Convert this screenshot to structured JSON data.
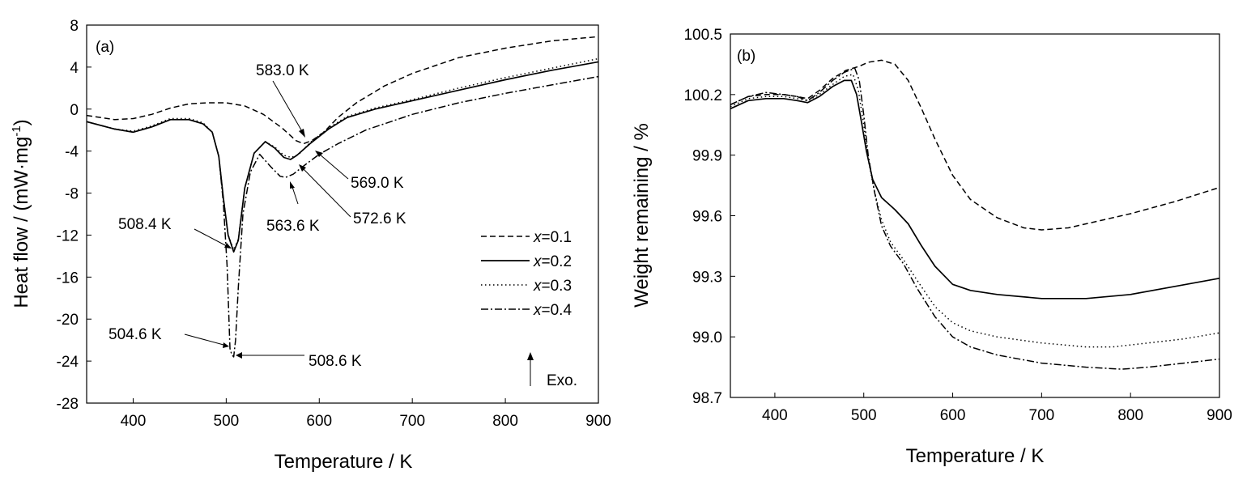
{
  "chart_data": [
    {
      "type": "line",
      "panel_label": "(a)",
      "xlabel": "Temperature / K",
      "ylabel_main": "Heat flow / (mW·mg",
      "ylabel_sup": "-1",
      "ylabel_close": ")",
      "xlim": [
        350,
        900
      ],
      "ylim": [
        -28,
        8
      ],
      "xticks": [
        "400",
        "500",
        "600",
        "700",
        "800",
        "900"
      ],
      "xtick_values": [
        400,
        500,
        600,
        700,
        800,
        900
      ],
      "yticks": [
        "8",
        "4",
        "0",
        "-4",
        "-8",
        "-12",
        "-16",
        "-20",
        "-24",
        "-28"
      ],
      "ytick_values": [
        8,
        4,
        0,
        -4,
        -8,
        -12,
        -16,
        -20,
        -24,
        -28
      ],
      "legend_position": "center-right",
      "grid": false,
      "series": [
        {
          "name": "x=0.1",
          "var": "x",
          "val": "=0.1",
          "dash": "7,4",
          "points": [
            [
              350,
              -0.6
            ],
            [
              380,
              -1.0
            ],
            [
              400,
              -0.9
            ],
            [
              420,
              -0.5
            ],
            [
              440,
              0.1
            ],
            [
              460,
              0.5
            ],
            [
              480,
              0.6
            ],
            [
              500,
              0.6
            ],
            [
              520,
              0.3
            ],
            [
              540,
              -0.5
            ],
            [
              560,
              -1.8
            ],
            [
              575,
              -3.0
            ],
            [
              583,
              -3.3
            ],
            [
              592,
              -3.0
            ],
            [
              605,
              -2.2
            ],
            [
              620,
              -0.8
            ],
            [
              640,
              0.6
            ],
            [
              670,
              2.2
            ],
            [
              700,
              3.4
            ],
            [
              750,
              4.9
            ],
            [
              800,
              5.8
            ],
            [
              850,
              6.5
            ],
            [
              900,
              6.9
            ]
          ]
        },
        {
          "name": "x=0.2",
          "var": "x",
          "val": "=0.2",
          "dash": "",
          "points": [
            [
              350,
              -1.2
            ],
            [
              380,
              -1.9
            ],
            [
              400,
              -2.2
            ],
            [
              420,
              -1.7
            ],
            [
              440,
              -1.0
            ],
            [
              460,
              -1.0
            ],
            [
              475,
              -1.4
            ],
            [
              485,
              -2.2
            ],
            [
              492,
              -4.5
            ],
            [
              497,
              -8.5
            ],
            [
              502,
              -12.0
            ],
            [
              508,
              -13.6
            ],
            [
              513,
              -12.5
            ],
            [
              520,
              -7.5
            ],
            [
              530,
              -4.2
            ],
            [
              542,
              -3.1
            ],
            [
              552,
              -3.7
            ],
            [
              562,
              -4.6
            ],
            [
              569,
              -4.8
            ],
            [
              576,
              -4.4
            ],
            [
              590,
              -3.3
            ],
            [
              610,
              -1.9
            ],
            [
              630,
              -0.8
            ],
            [
              660,
              0
            ],
            [
              700,
              0.8
            ],
            [
              750,
              1.8
            ],
            [
              800,
              2.8
            ],
            [
              850,
              3.7
            ],
            [
              900,
              4.5
            ]
          ]
        },
        {
          "name": "x=0.3",
          "var": "x",
          "val": "=0.3",
          "dash": "1.5,3.5",
          "points": [
            [
              350,
              -1.2
            ],
            [
              380,
              -1.9
            ],
            [
              400,
              -2.1
            ],
            [
              420,
              -1.6
            ],
            [
              440,
              -0.9
            ],
            [
              460,
              -0.9
            ],
            [
              475,
              -1.3
            ],
            [
              485,
              -2.2
            ],
            [
              492,
              -4.5
            ],
            [
              497,
              -8.5
            ],
            [
              502,
              -12.0
            ],
            [
              508,
              -13.4
            ],
            [
              513,
              -12.4
            ],
            [
              520,
              -7.5
            ],
            [
              530,
              -4.2
            ],
            [
              542,
              -3.1
            ],
            [
              552,
              -3.6
            ],
            [
              562,
              -4.4
            ],
            [
              570,
              -4.6
            ],
            [
              578,
              -4.3
            ],
            [
              590,
              -3.2
            ],
            [
              610,
              -1.8
            ],
            [
              630,
              -0.7
            ],
            [
              660,
              0.1
            ],
            [
              700,
              0.9
            ],
            [
              750,
              2.0
            ],
            [
              800,
              3.0
            ],
            [
              850,
              3.9
            ],
            [
              900,
              4.8
            ]
          ]
        },
        {
          "name": "x=0.4",
          "var": "x",
          "val": "=0.4",
          "dash": "9,3,2,3",
          "points": [
            [
              350,
              -1.2
            ],
            [
              380,
              -1.9
            ],
            [
              400,
              -2.2
            ],
            [
              420,
              -1.7
            ],
            [
              440,
              -1.0
            ],
            [
              460,
              -1.0
            ],
            [
              475,
              -1.4
            ],
            [
              485,
              -2.2
            ],
            [
              492,
              -4.5
            ],
            [
              497,
              -9.0
            ],
            [
              501,
              -15.0
            ],
            [
              504,
              -22.8
            ],
            [
              506,
              -23.4
            ],
            [
              508,
              -23.6
            ],
            [
              510,
              -22.0
            ],
            [
              513,
              -17.0
            ],
            [
              518,
              -10.0
            ],
            [
              526,
              -6.0
            ],
            [
              536,
              -4.3
            ],
            [
              548,
              -5.5
            ],
            [
              558,
              -6.4
            ],
            [
              564,
              -6.5
            ],
            [
              572,
              -6.2
            ],
            [
              585,
              -5.3
            ],
            [
              600,
              -4.3
            ],
            [
              620,
              -3.3
            ],
            [
              650,
              -2.0
            ],
            [
              700,
              -0.5
            ],
            [
              750,
              0.6
            ],
            [
              800,
              1.5
            ],
            [
              850,
              2.3
            ],
            [
              900,
              3.1
            ]
          ]
        }
      ],
      "annotations": [
        {
          "text": "583.0 K"
        },
        {
          "text": "569.0 K"
        },
        {
          "text": "572.6 K"
        },
        {
          "text": "563.6 K"
        },
        {
          "text": "508.4 K"
        },
        {
          "text": "504.6 K"
        },
        {
          "text": "508.6 K"
        },
        {
          "text": "Exo."
        }
      ]
    },
    {
      "type": "line",
      "panel_label": "(b)",
      "xlabel": "Temperature / K",
      "ylabel": "Weight remaining / %",
      "xlim": [
        350,
        900
      ],
      "ylim": [
        98.7,
        100.5
      ],
      "xticks": [
        "400",
        "500",
        "600",
        "700",
        "800",
        "900"
      ],
      "xtick_values": [
        400,
        500,
        600,
        700,
        800,
        900
      ],
      "yticks": [
        "100.5",
        "100.2",
        "99.9",
        "99.6",
        "99.3",
        "99.0",
        "98.7"
      ],
      "ytick_values": [
        100.5,
        100.2,
        99.9,
        99.6,
        99.3,
        99.0,
        98.7
      ],
      "grid": false,
      "series": [
        {
          "name": "x=0.1",
          "dash": "7,4",
          "points": [
            [
              350,
              100.15
            ],
            [
              370,
              100.19
            ],
            [
              390,
              100.2
            ],
            [
              410,
              100.2
            ],
            [
              425,
              100.19
            ],
            [
              437,
              100.18
            ],
            [
              450,
              100.22
            ],
            [
              465,
              100.28
            ],
            [
              480,
              100.32
            ],
            [
              495,
              100.34
            ],
            [
              505,
              100.36
            ],
            [
              520,
              100.37
            ],
            [
              535,
              100.35
            ],
            [
              550,
              100.27
            ],
            [
              565,
              100.13
            ],
            [
              580,
              99.98
            ],
            [
              600,
              99.8
            ],
            [
              620,
              99.68
            ],
            [
              650,
              99.59
            ],
            [
              680,
              99.54
            ],
            [
              700,
              99.53
            ],
            [
              730,
              99.54
            ],
            [
              760,
              99.57
            ],
            [
              800,
              99.61
            ],
            [
              850,
              99.67
            ],
            [
              900,
              99.74
            ]
          ]
        },
        {
          "name": "x=0.2",
          "dash": "",
          "points": [
            [
              350,
              100.13
            ],
            [
              370,
              100.17
            ],
            [
              390,
              100.18
            ],
            [
              410,
              100.18
            ],
            [
              425,
              100.17
            ],
            [
              437,
              100.16
            ],
            [
              450,
              100.19
            ],
            [
              465,
              100.24
            ],
            [
              478,
              100.27
            ],
            [
              486,
              100.27
            ],
            [
              492,
              100.2
            ],
            [
              498,
              100.05
            ],
            [
              503,
              99.92
            ],
            [
              510,
              99.78
            ],
            [
              520,
              99.69
            ],
            [
              535,
              99.63
            ],
            [
              550,
              99.56
            ],
            [
              565,
              99.45
            ],
            [
              580,
              99.35
            ],
            [
              600,
              99.26
            ],
            [
              620,
              99.23
            ],
            [
              650,
              99.21
            ],
            [
              700,
              99.19
            ],
            [
              750,
              99.19
            ],
            [
              800,
              99.21
            ],
            [
              850,
              99.25
            ],
            [
              900,
              99.29
            ]
          ]
        },
        {
          "name": "x=0.3",
          "dash": "1.5,3.5",
          "points": [
            [
              350,
              100.14
            ],
            [
              370,
              100.18
            ],
            [
              390,
              100.19
            ],
            [
              410,
              100.19
            ],
            [
              425,
              100.18
            ],
            [
              437,
              100.17
            ],
            [
              450,
              100.2
            ],
            [
              465,
              100.25
            ],
            [
              478,
              100.29
            ],
            [
              488,
              100.3
            ],
            [
              494,
              100.22
            ],
            [
              500,
              100.05
            ],
            [
              505,
              99.88
            ],
            [
              512,
              99.72
            ],
            [
              520,
              99.58
            ],
            [
              530,
              99.47
            ],
            [
              545,
              99.38
            ],
            [
              560,
              99.28
            ],
            [
              580,
              99.15
            ],
            [
              600,
              99.07
            ],
            [
              620,
              99.03
            ],
            [
              650,
              99.0
            ],
            [
              700,
              98.97
            ],
            [
              750,
              98.95
            ],
            [
              780,
              98.95
            ],
            [
              820,
              98.97
            ],
            [
              860,
              98.99
            ],
            [
              900,
              99.02
            ]
          ]
        },
        {
          "name": "x=0.4",
          "dash": "9,3,2,3",
          "points": [
            [
              350,
              100.15
            ],
            [
              370,
              100.19
            ],
            [
              390,
              100.21
            ],
            [
              410,
              100.2
            ],
            [
              425,
              100.19
            ],
            [
              437,
              100.17
            ],
            [
              450,
              100.21
            ],
            [
              465,
              100.27
            ],
            [
              478,
              100.31
            ],
            [
              490,
              100.33
            ],
            [
              495,
              100.27
            ],
            [
              500,
              100.1
            ],
            [
              505,
              99.9
            ],
            [
              512,
              99.72
            ],
            [
              520,
              99.55
            ],
            [
              530,
              99.45
            ],
            [
              545,
              99.36
            ],
            [
              560,
              99.24
            ],
            [
              580,
              99.1
            ],
            [
              600,
              99.0
            ],
            [
              620,
              98.95
            ],
            [
              650,
              98.91
            ],
            [
              700,
              98.87
            ],
            [
              750,
              98.85
            ],
            [
              790,
              98.84
            ],
            [
              820,
              98.85
            ],
            [
              860,
              98.87
            ],
            [
              900,
              98.89
            ]
          ]
        }
      ]
    }
  ]
}
